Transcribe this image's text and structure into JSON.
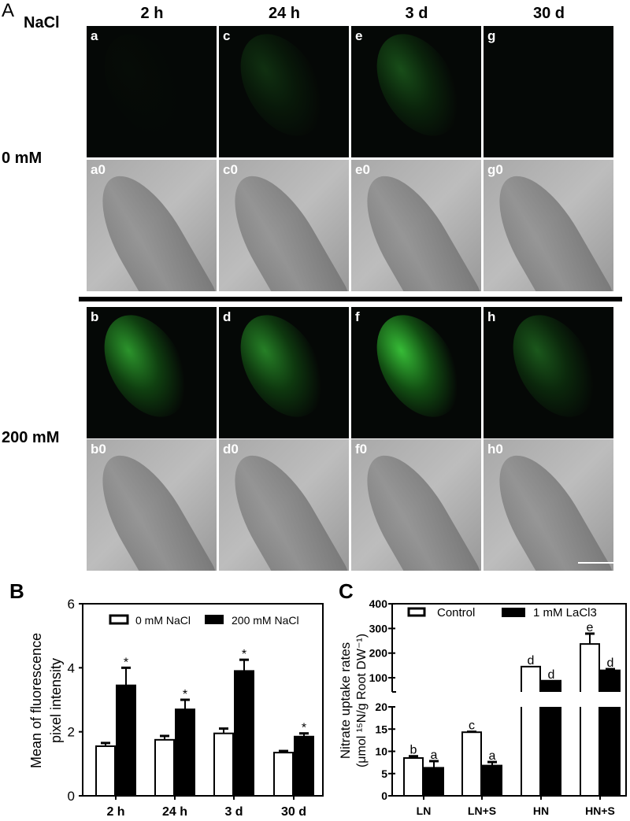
{
  "panel_a": {
    "label": "A",
    "treatment_label": "NaCl",
    "columns": [
      "2 h",
      "24 h",
      "3 d",
      "30 d"
    ],
    "rows": [
      "0 mM",
      "200 mM"
    ],
    "tags": {
      "r0_fl": [
        "a",
        "c",
        "e",
        "g"
      ],
      "r0_bf": [
        "a0",
        "c0",
        "e0",
        "g0"
      ],
      "r1_fl": [
        "b",
        "d",
        "f",
        "h"
      ],
      "r1_bf": [
        "b0",
        "d0",
        "f0",
        "h0"
      ]
    },
    "fluorescence_intensity": {
      "r0": [
        0.02,
        0.2,
        0.35,
        0.0
      ],
      "r1": [
        0.7,
        0.6,
        0.9,
        0.4
      ]
    },
    "fluorescence_color": "#3ccf3c"
  },
  "chart_data": [
    {
      "panel": "B",
      "type": "bar",
      "categories": [
        "2 h",
        "24 h",
        "3 d",
        "30 d"
      ],
      "ylabel": "Mean of fluorescence pixel intensity",
      "ylim": [
        0,
        6
      ],
      "yticks": [
        "0",
        "2",
        "4",
        "6"
      ],
      "legend_position": "top",
      "series": [
        {
          "name": "0 mM NaCl",
          "values": [
            1.55,
            1.75,
            1.95,
            1.35
          ],
          "errors": [
            0.1,
            0.12,
            0.15,
            0.05
          ],
          "color": "#ffffff",
          "marks": [
            "",
            "",
            "",
            ""
          ]
        },
        {
          "name": "200 mM NaCl",
          "values": [
            3.45,
            2.7,
            3.9,
            1.85
          ],
          "errors": [
            0.55,
            0.3,
            0.35,
            0.1
          ],
          "color": "#000000",
          "marks": [
            "*",
            "*",
            "*",
            "*"
          ]
        }
      ]
    },
    {
      "panel": "C",
      "type": "bar",
      "categories": [
        "LN",
        "LN+S",
        "HN",
        "HN+S"
      ],
      "ylabel": "Nitrate uptake rates",
      "ylabel2": "(μmol ¹⁵N/g Root DW⁻¹)",
      "ylim": [
        0,
        400
      ],
      "axis_break": [
        20,
        40
      ],
      "yticks_lower": [
        "0",
        "5",
        "10",
        "15",
        "20"
      ],
      "yticks_upper": [
        "100",
        "200",
        "300",
        "400"
      ],
      "legend_position": "top",
      "series": [
        {
          "name": "Control",
          "values": [
            8.5,
            14.3,
            145,
            237
          ],
          "errors": [
            0.4,
            0.1,
            0,
            42
          ],
          "color": "#ffffff",
          "marks": [
            "b",
            "c",
            "d",
            "e"
          ]
        },
        {
          "name": "1 mM LaCl3",
          "values": [
            6.3,
            6.8,
            88,
            130
          ],
          "errors": [
            1.5,
            0.8,
            0,
            5
          ],
          "color": "#000000",
          "marks": [
            "a",
            "a",
            "d",
            "d"
          ]
        }
      ]
    }
  ]
}
